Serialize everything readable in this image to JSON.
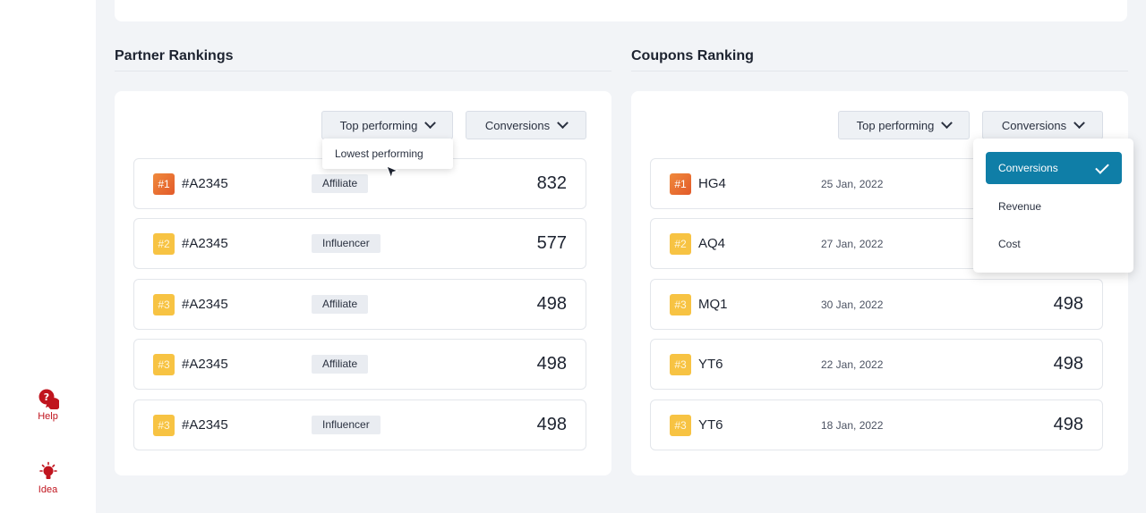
{
  "sidebar": {
    "items": [
      {
        "label": "Help",
        "icon": "help-icon"
      },
      {
        "label": "Idea",
        "icon": "bulb-icon"
      }
    ],
    "accent": "#c0141e"
  },
  "partner": {
    "title": "Partner Rankings",
    "filter_label": "Top performing",
    "metric_label": "Conversions",
    "menu_option": "Lowest performing",
    "rows": [
      {
        "rank": "#1",
        "name": "#A2345",
        "tag": "Affiliate",
        "value": "832"
      },
      {
        "rank": "#2",
        "name": "#A2345",
        "tag": "Influencer",
        "value": "577"
      },
      {
        "rank": "#3",
        "name": "#A2345",
        "tag": "Affiliate",
        "value": "498"
      },
      {
        "rank": "#3",
        "name": "#A2345",
        "tag": "Affiliate",
        "value": "498"
      },
      {
        "rank": "#3",
        "name": "#A2345",
        "tag": "Influencer",
        "value": "498"
      }
    ]
  },
  "coupons": {
    "title": "Coupons Ranking",
    "filter_label": "Top performing",
    "metric_label": "Conversions",
    "metric_options": [
      "Conversions",
      "Revenue",
      "Cost"
    ],
    "selected_option": "Conversions",
    "rows": [
      {
        "rank": "#1",
        "code": "HG4",
        "date": "25 Jan, 2022",
        "value": ""
      },
      {
        "rank": "#2",
        "code": "AQ4",
        "date": "27 Jan, 2022",
        "value": ""
      },
      {
        "rank": "#3",
        "code": "MQ1",
        "date": "30 Jan, 2022",
        "value": "498"
      },
      {
        "rank": "#3",
        "code": "YT6",
        "date": "22 Jan, 2022",
        "value": "498"
      },
      {
        "rank": "#3",
        "code": "YT6",
        "date": "18 Jan, 2022",
        "value": "498"
      }
    ]
  },
  "colors": {
    "rank1": "#e76f33",
    "rank_other": "#f7c343",
    "selected_option": "#0f7ea7"
  }
}
